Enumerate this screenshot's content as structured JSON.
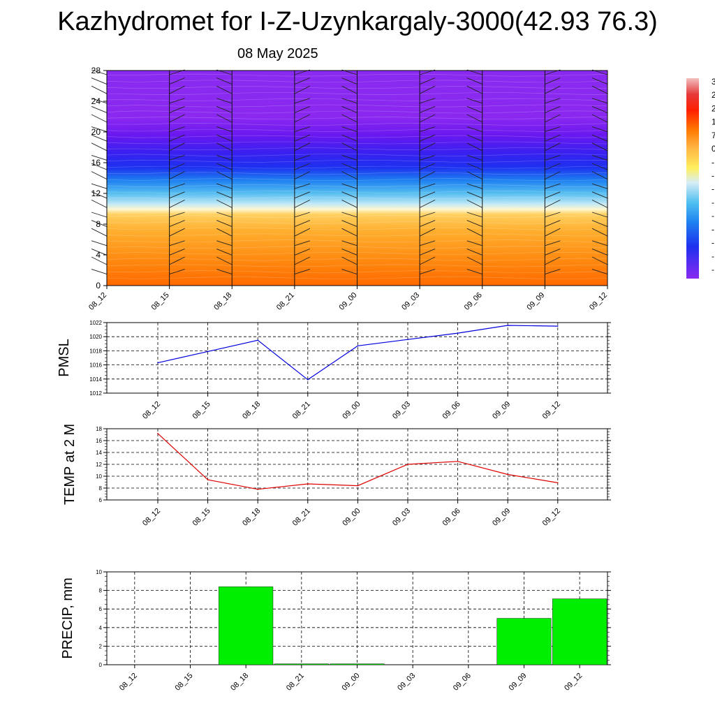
{
  "header": {
    "title": "Kazhydromet for I-Z-Uzynkargaly-3000(42.93 76.3)",
    "date": "08 May 2025"
  },
  "colors": {
    "pmsl_line": "#0000dd",
    "temp_line": "#dd0000",
    "precip_bar": "#00ee00",
    "grid": "#000000"
  },
  "chart_data": [
    {
      "type": "heatmap",
      "title": "",
      "xlabel": "",
      "ylabel": "",
      "x_ticks": [
        "08_12",
        "08_15",
        "08_18",
        "08_21",
        "09_00",
        "09_03",
        "09_06",
        "09_09",
        "09_12"
      ],
      "y_ticks": [
        0,
        4,
        8,
        12,
        16,
        20,
        24,
        28
      ],
      "ylim": [
        0,
        28
      ],
      "overlay": "wind barbs at each time step",
      "colorbar_labels": [
        "3",
        "2",
        "2",
        "1",
        "7",
        "0",
        "-",
        "-",
        "-",
        "-",
        "-",
        "-",
        "-",
        "-",
        "-"
      ],
      "colorbar_colors": [
        "#f2b6b6",
        "#e43030",
        "#ff3f00",
        "#ff7f00",
        "#ffa533",
        "#ffd040",
        "#fff060",
        "#d6eef6",
        "#7fd2f0",
        "#2faef0",
        "#2080f0",
        "#1a50f0",
        "#2a20f0",
        "#5a10f0",
        "#8020f0"
      ]
    },
    {
      "type": "line",
      "ylabel": "PMSL",
      "categories": [
        "08_12",
        "08_15",
        "08_18",
        "08_21",
        "09_00",
        "09_03",
        "09_06",
        "09_09",
        "09_12"
      ],
      "values": [
        1016.3,
        1017.9,
        1019.5,
        1013.9,
        1018.7,
        1019.6,
        1020.5,
        1021.6,
        1021.5
      ],
      "ylim": [
        1012,
        1022
      ],
      "y_ticks": [
        1012,
        1014,
        1016,
        1018,
        1020,
        1022
      ],
      "grid": true
    },
    {
      "type": "line",
      "ylabel": "TEMP at 2 M",
      "categories": [
        "08_12",
        "08_15",
        "08_18",
        "08_21",
        "09_00",
        "09_03",
        "09_06",
        "09_09",
        "09_12"
      ],
      "values": [
        17.2,
        9.4,
        7.8,
        8.7,
        8.4,
        12.0,
        12.5,
        10.3,
        8.9
      ],
      "ylim": [
        6,
        18
      ],
      "y_ticks": [
        6,
        8,
        10,
        12,
        14,
        16,
        18
      ],
      "grid": true
    },
    {
      "type": "bar",
      "ylabel": "PRECIP, mm",
      "categories": [
        "08_12",
        "08_15",
        "08_18",
        "08_21",
        "09_00",
        "09_03",
        "09_06",
        "09_09",
        "09_12"
      ],
      "values": [
        0,
        0,
        8.4,
        0.1,
        0.1,
        0,
        0,
        5.0,
        7.1
      ],
      "ylim": [
        0,
        10
      ],
      "y_ticks": [
        0,
        2,
        4,
        6,
        8,
        10
      ],
      "grid": true
    }
  ]
}
